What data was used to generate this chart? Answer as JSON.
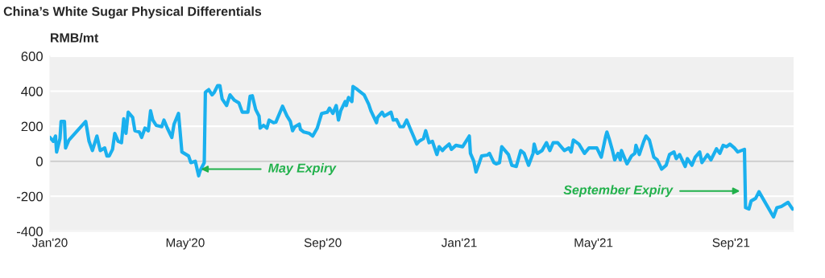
{
  "chart_data": {
    "type": "line",
    "title": "China’s White Sugar Physical Differentials",
    "ylabel": "RMB/mt",
    "x": [
      "2020-01-01",
      "2020-01-04",
      "2020-01-06",
      "2020-01-07",
      "2020-01-10",
      "2020-01-11",
      "2020-01-14",
      "2020-01-15",
      "2020-01-18",
      "2020-02-02",
      "2020-02-05",
      "2020-02-08",
      "2020-02-12",
      "2020-02-15",
      "2020-02-19",
      "2020-02-21",
      "2020-02-23",
      "2020-02-26",
      "2020-02-28",
      "2020-03-02",
      "2020-03-05",
      "2020-03-07",
      "2020-03-09",
      "2020-03-11",
      "2020-03-15",
      "2020-03-17",
      "2020-03-21",
      "2020-03-23",
      "2020-03-26",
      "2020-03-29",
      "2020-03-31",
      "2020-04-02",
      "2020-04-05",
      "2020-04-10",
      "2020-04-12",
      "2020-04-15",
      "2020-04-19",
      "2020-04-21",
      "2020-04-25",
      "2020-04-28",
      "2020-05-04",
      "2020-05-06",
      "2020-05-10",
      "2020-05-13",
      "2020-05-14",
      "2020-05-15",
      "2020-05-18",
      "2020-05-19",
      "2020-05-22",
      "2020-05-25",
      "2020-05-27",
      "2020-05-30",
      "2020-06-01",
      "2020-06-03",
      "2020-06-07",
      "2020-06-10",
      "2020-06-14",
      "2020-06-18",
      "2020-06-21",
      "2020-06-26",
      "2020-06-28",
      "2020-06-30",
      "2020-07-03",
      "2020-07-06",
      "2020-07-07",
      "2020-07-10",
      "2020-07-13",
      "2020-07-15",
      "2020-07-19",
      "2020-07-21",
      "2020-07-27",
      "2020-07-31",
      "2020-08-03",
      "2020-08-05",
      "2020-08-07",
      "2020-08-11",
      "2020-08-12",
      "2020-08-15",
      "2020-08-20",
      "2020-08-23",
      "2020-08-27",
      "2020-08-31",
      "2020-09-05",
      "2020-09-07",
      "2020-09-10",
      "2020-09-13",
      "2020-09-15",
      "2020-09-17",
      "2020-09-21",
      "2020-09-22",
      "2020-09-24",
      "2020-09-27",
      "2020-09-28",
      "2020-10-02",
      "2020-10-08",
      "2020-10-12",
      "2020-10-14",
      "2020-10-19",
      "2020-10-20",
      "2020-10-24",
      "2020-10-26",
      "2020-11-01",
      "2020-11-03",
      "2020-11-06",
      "2020-11-09",
      "2020-11-12",
      "2020-11-15",
      "2020-11-18",
      "2020-11-21",
      "2020-11-24",
      "2020-11-26",
      "2020-11-30",
      "2020-12-02",
      "2020-12-05",
      "2020-12-08",
      "2020-12-12",
      "2020-12-14",
      "2020-12-17",
      "2020-12-19",
      "2020-12-23",
      "2020-12-25",
      "2020-12-29",
      "2021-01-04",
      "2021-01-10",
      "2021-01-11",
      "2021-01-14",
      "2021-01-16",
      "2021-01-19",
      "2021-01-21",
      "2021-01-26",
      "2021-01-28",
      "2021-02-01",
      "2021-02-03",
      "2021-02-06",
      "2021-02-08",
      "2021-02-14",
      "2021-02-17",
      "2021-02-21",
      "2021-02-25",
      "2021-02-28",
      "2021-03-04",
      "2021-03-08",
      "2021-03-09",
      "2021-03-11",
      "2021-03-12",
      "2021-03-16",
      "2021-03-20",
      "2021-03-23",
      "2021-03-26",
      "2021-03-30",
      "2021-04-05",
      "2021-04-09",
      "2021-04-11",
      "2021-04-13",
      "2021-04-18",
      "2021-04-23",
      "2021-04-27",
      "2021-05-04",
      "2021-05-08",
      "2021-05-12",
      "2021-05-13",
      "2021-05-15",
      "2021-05-18",
      "2021-05-20",
      "2021-05-23",
      "2021-05-25",
      "2021-05-26",
      "2021-05-31",
      "2021-06-04",
      "2021-06-07",
      "2021-06-08",
      "2021-06-11",
      "2021-06-15",
      "2021-06-17",
      "2021-06-20",
      "2021-06-24",
      "2021-06-27",
      "2021-07-01",
      "2021-07-05",
      "2021-07-08",
      "2021-07-12",
      "2021-07-14",
      "2021-07-17",
      "2021-07-22",
      "2021-07-24",
      "2021-07-28",
      "2021-07-31",
      "2021-08-04",
      "2021-08-06",
      "2021-08-11",
      "2021-08-14",
      "2021-08-19",
      "2021-08-22",
      "2021-08-25",
      "2021-08-28",
      "2021-08-31",
      "2021-09-04",
      "2021-09-07",
      "2021-09-13",
      "2021-09-14",
      "2021-09-17",
      "2021-09-19",
      "2021-09-23",
      "2021-09-26",
      "2021-10-09",
      "2021-10-12",
      "2021-10-16",
      "2021-10-22",
      "2021-10-26"
    ],
    "series": [
      {
        "color": "#1ab0ee",
        "values": [
          136,
          114,
          144,
          53,
          129,
          227,
          227,
          76,
          121,
          227,
          114,
          61,
          144,
          61,
          76,
          30,
          30,
          68,
          159,
          114,
          106,
          242,
          159,
          280,
          250,
          174,
          167,
          136,
          189,
          174,
          288,
          235,
          205,
          197,
          235,
          189,
          136,
          212,
          273,
          53,
          30,
          -8,
          0,
          -83,
          -61,
          -45,
          -8,
          394,
          409,
          379,
          394,
          432,
          432,
          356,
          318,
          379,
          348,
          333,
          280,
          280,
          371,
          374,
          295,
          258,
          189,
          205,
          189,
          235,
          220,
          223,
          314,
          258,
          227,
          174,
          197,
          212,
          182,
          167,
          159,
          144,
          189,
          273,
          280,
          303,
          273,
          318,
          235,
          288,
          341,
          318,
          364,
          341,
          427,
          409,
          379,
          326,
          288,
          220,
          250,
          280,
          258,
          280,
          235,
          238,
          197,
          197,
          235,
          189,
          144,
          98,
          114,
          129,
          174,
          106,
          114,
          38,
          83,
          61,
          76,
          98,
          68,
          91,
          83,
          144,
          45,
          0,
          -61,
          -8,
          30,
          35,
          45,
          -8,
          -15,
          -8,
          83,
          38,
          -23,
          -30,
          61,
          45,
          -23,
          45,
          98,
          53,
          45,
          61,
          106,
          61,
          106,
          106,
          61,
          76,
          53,
          121,
          98,
          45,
          76,
          76,
          23,
          144,
          167,
          129,
          61,
          8,
          45,
          8,
          61,
          -15,
          30,
          45,
          91,
          38,
          114,
          144,
          121,
          23,
          8,
          -45,
          -23,
          38,
          53,
          15,
          38,
          -30,
          15,
          -23,
          23,
          53,
          -8,
          38,
          8,
          71,
          45,
          91,
          83,
          98,
          76,
          53,
          68,
          -265,
          -273,
          -227,
          -212,
          -174,
          -318,
          -265,
          -258,
          -235,
          -273
        ]
      }
    ],
    "xlim": [
      "2020-01-01",
      "2021-10-27"
    ],
    "xticks": [
      {
        "value": "2020-01-01",
        "label": "Jan'20"
      },
      {
        "value": "2020-05-01",
        "label": "May'20"
      },
      {
        "value": "2020-09-01",
        "label": "Sep'20"
      },
      {
        "value": "2021-01-01",
        "label": "Jan'21"
      },
      {
        "value": "2021-05-01",
        "label": "May'21"
      },
      {
        "value": "2021-09-01",
        "label": "Sep'21"
      }
    ],
    "ylim": [
      -400,
      600
    ],
    "yticks": [
      -400,
      -200,
      0,
      200,
      400,
      600
    ],
    "grid": "y",
    "line_style": "solid",
    "marker": "none",
    "ref_lines": [
      {
        "axis": "y",
        "value": 0,
        "color": "#cccccc"
      }
    ],
    "annotations": [
      {
        "text": "May Expiry",
        "x": "2020-05-15",
        "y": -45
      },
      {
        "text": "September Expiry",
        "x": "2021-09-09",
        "y": -170
      }
    ]
  }
}
